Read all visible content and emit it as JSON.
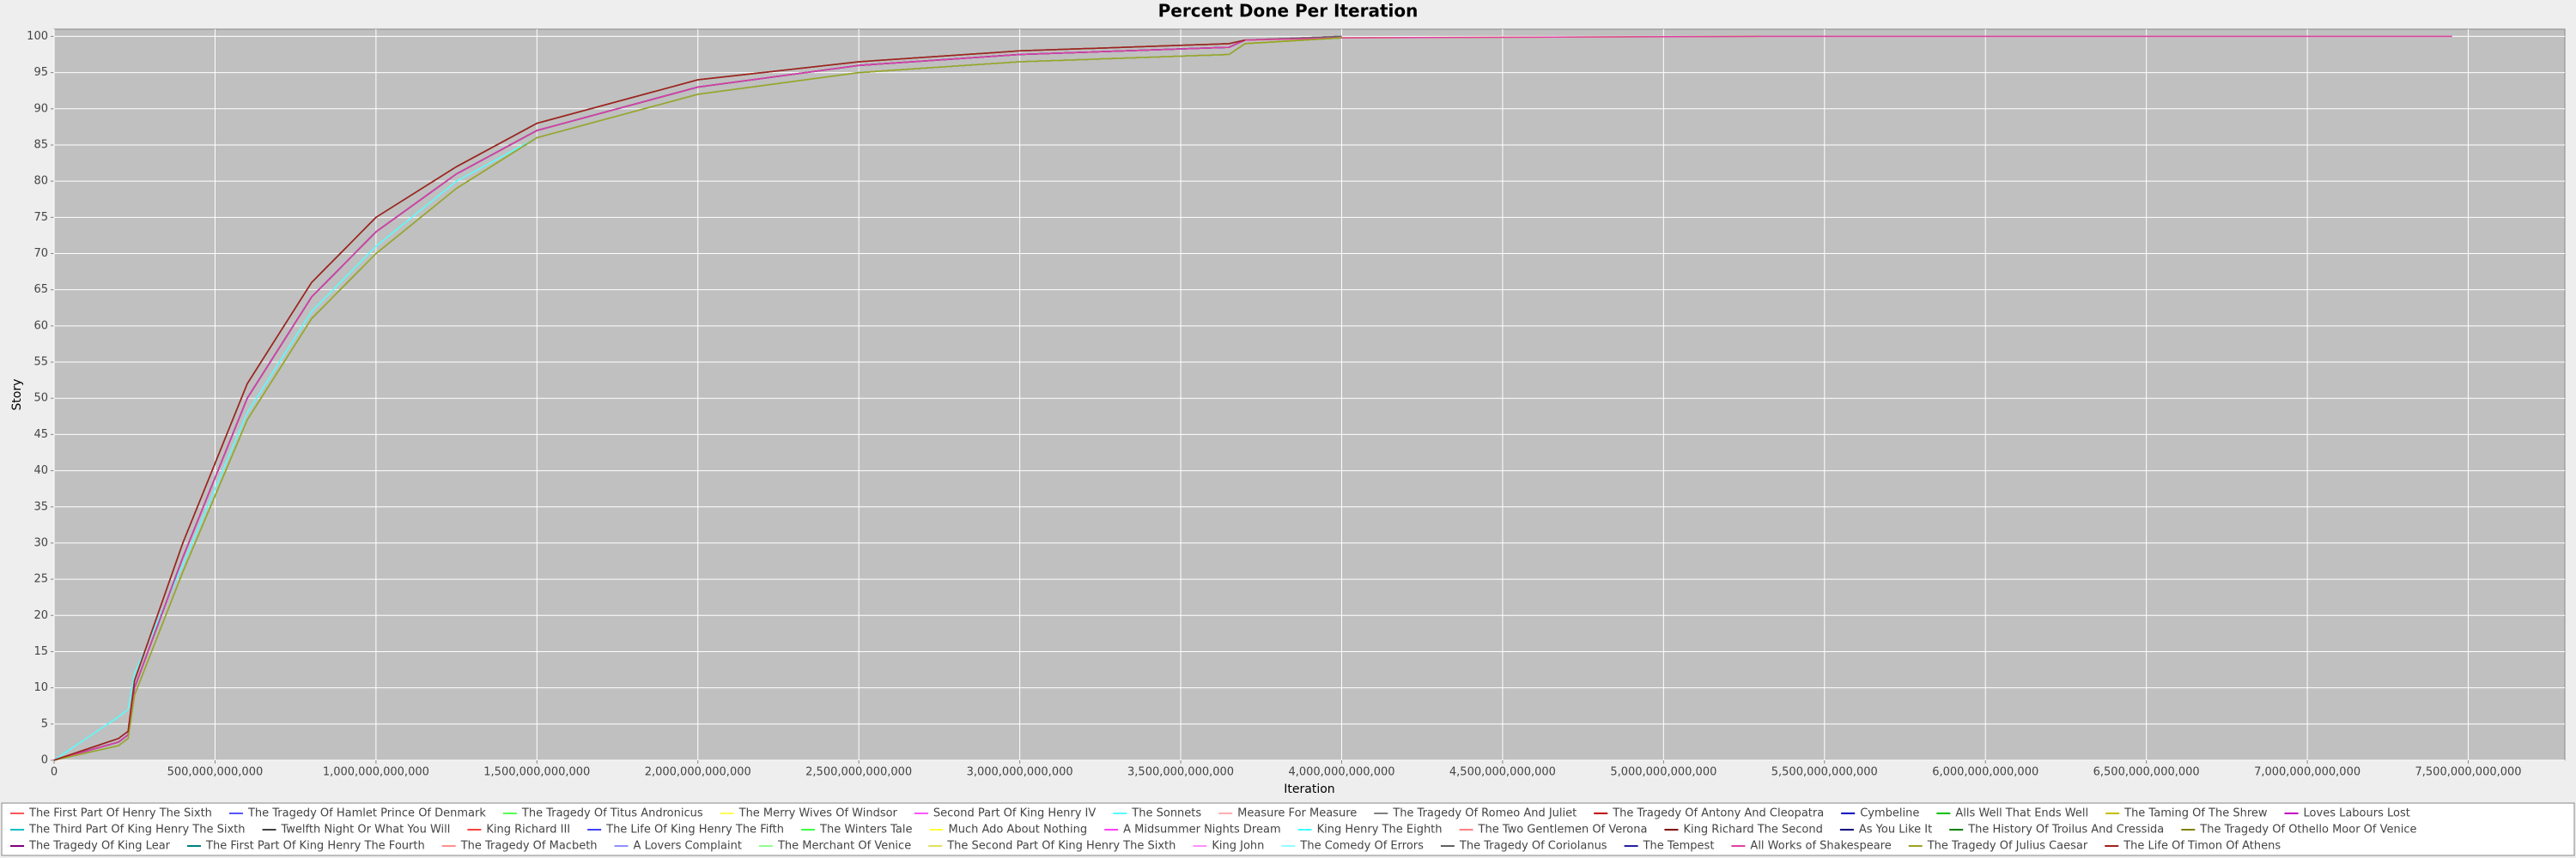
{
  "chart_data": {
    "type": "line",
    "title": "Percent Done Per Iteration",
    "x_label": "Iteration",
    "y_label": "Story",
    "x": [
      0,
      200000000000,
      230000000000,
      250000000000,
      400000000000,
      600000000000,
      800000000000,
      1000000000000,
      1250000000000,
      1500000000000,
      2000000000000,
      2500000000000,
      3000000000000,
      3650000000000,
      3700000000000,
      4000000000000,
      5300000000000,
      7450000000000
    ],
    "xlim": [
      0,
      7800000000000
    ],
    "ylim": [
      0,
      101
    ],
    "grid": true,
    "legend": "bottom",
    "xticks": [
      {
        "value": 0,
        "label": "0"
      },
      {
        "value": 500000000000,
        "label": "500,000,000,000"
      },
      {
        "value": 1000000000000,
        "label": "1,000,000,000,000"
      },
      {
        "value": 1500000000000,
        "label": "1,500,000,000,000"
      },
      {
        "value": 2000000000000,
        "label": "2,000,000,000,000"
      },
      {
        "value": 2500000000000,
        "label": "2,500,000,000,000"
      },
      {
        "value": 3000000000000,
        "label": "3,000,000,000,000"
      },
      {
        "value": 3500000000000,
        "label": "3,500,000,000,000"
      },
      {
        "value": 4000000000000,
        "label": "4,000,000,000,000"
      },
      {
        "value": 4500000000000,
        "label": "4,500,000,000,000"
      },
      {
        "value": 5000000000000,
        "label": "5,000,000,000,000"
      },
      {
        "value": 5500000000000,
        "label": "5,500,000,000,000"
      },
      {
        "value": 6000000000000,
        "label": "6,000,000,000,000"
      },
      {
        "value": 6500000000000,
        "label": "6,500,000,000,000"
      },
      {
        "value": 7000000000000,
        "label": "7,000,000,000,000"
      },
      {
        "value": 7500000000000,
        "label": "7,500,000,000,000"
      }
    ],
    "yticks": [
      0,
      5,
      10,
      15,
      20,
      25,
      30,
      35,
      40,
      45,
      50,
      55,
      60,
      65,
      70,
      75,
      80,
      85,
      90,
      95,
      100
    ],
    "series": [
      {
        "name": "The First Part Of Henry The Sixth",
        "color": "#ff5555",
        "values": [
          0,
          3,
          4,
          11,
          30,
          52,
          66,
          75,
          82,
          88,
          94,
          96.5,
          98,
          99,
          99.5,
          100,
          null,
          null
        ]
      },
      {
        "name": "The Tragedy Of Hamlet Prince Of Denmark",
        "color": "#5555ff",
        "values": [
          0,
          2.5,
          3.5,
          10,
          28,
          50,
          64,
          73,
          81,
          87,
          93,
          96,
          97.5,
          98.5,
          99.5,
          null,
          null,
          null
        ]
      },
      {
        "name": "The Tragedy Of Titus Andronicus",
        "color": "#55ff55",
        "values": [
          0,
          2,
          3,
          9,
          26,
          47,
          61,
          70,
          79,
          86,
          92,
          95,
          96.5,
          97.5,
          99,
          99.8,
          null,
          null
        ]
      },
      {
        "name": "The Merry Wives Of Windsor",
        "color": "#ffff55",
        "values": [
          0,
          3,
          4,
          11,
          30,
          52,
          66,
          75,
          82,
          88,
          94,
          96.5,
          98,
          99,
          99.5,
          null,
          null,
          null
        ]
      },
      {
        "name": "Second Part Of King Henry IV",
        "color": "#ff55ff",
        "values": [
          0,
          2.5,
          3.5,
          10,
          28,
          50,
          64,
          73,
          81,
          87,
          93,
          96,
          97.5,
          98.5,
          99.5,
          100,
          null,
          null
        ]
      },
      {
        "name": "The Sonnets",
        "color": "#55ffff",
        "values": [
          0,
          6,
          7,
          12,
          27,
          48,
          62,
          71,
          80,
          86,
          92,
          95,
          96.5,
          97.5,
          99,
          null,
          null,
          null
        ]
      },
      {
        "name": "Measure For Measure",
        "color": "#ffafaf",
        "values": [
          0,
          2,
          3,
          9,
          26,
          47,
          61,
          70,
          79,
          86,
          92,
          95,
          96.5,
          97.5,
          99,
          99.8,
          null,
          null
        ]
      },
      {
        "name": "The Tragedy Of Romeo And Juliet",
        "color": "#808080",
        "values": [
          0,
          3,
          4,
          11,
          30,
          52,
          66,
          75,
          82,
          88,
          94,
          96.5,
          98,
          99,
          99.5,
          100,
          null,
          null
        ]
      },
      {
        "name": "The Tragedy Of Antony And Cleopatra",
        "color": "#c00000",
        "values": [
          0,
          2.5,
          3.5,
          10,
          28,
          50,
          64,
          73,
          81,
          87,
          93,
          96,
          97.5,
          98.5,
          99.5,
          null,
          null,
          null
        ]
      },
      {
        "name": "Cymbeline",
        "color": "#0000c0",
        "values": [
          0,
          2,
          3,
          9,
          26,
          47,
          61,
          70,
          79,
          86,
          92,
          95,
          96.5,
          97.5,
          99,
          99.8,
          null,
          null
        ]
      },
      {
        "name": "Alls Well That Ends Well",
        "color": "#00c000",
        "values": [
          0,
          3,
          4,
          11,
          30,
          52,
          66,
          75,
          82,
          88,
          94,
          96.5,
          98,
          99,
          99.5,
          100,
          null,
          null
        ]
      },
      {
        "name": "The Taming Of The Shrew",
        "color": "#c0c000",
        "values": [
          0,
          2.5,
          3.5,
          10,
          28,
          50,
          64,
          73,
          81,
          87,
          93,
          96,
          97.5,
          98.5,
          99.5,
          99.8,
          100,
          null
        ]
      },
      {
        "name": "Loves Labours Lost",
        "color": "#c000c0",
        "values": [
          0,
          2,
          3,
          9,
          26,
          47,
          61,
          70,
          79,
          86,
          92,
          95,
          96.5,
          97.5,
          99,
          null,
          null,
          null
        ]
      },
      {
        "name": "The Third Part Of King Henry The Sixth",
        "color": "#00c0c0",
        "values": [
          0,
          3,
          4,
          11,
          30,
          52,
          66,
          75,
          82,
          88,
          94,
          96.5,
          98,
          99,
          99.5,
          100,
          null,
          null
        ]
      },
      {
        "name": "Twelfth Night Or What You Will",
        "color": "#404040",
        "values": [
          0,
          2.5,
          3.5,
          10,
          28,
          50,
          64,
          73,
          81,
          87,
          93,
          96,
          97.5,
          98.5,
          99.5,
          100,
          null,
          null
        ]
      },
      {
        "name": "King Richard III",
        "color": "#ff4040",
        "values": [
          0,
          2,
          3,
          9,
          26,
          47,
          61,
          70,
          79,
          86,
          92,
          95,
          96.5,
          97.5,
          99,
          null,
          null,
          null
        ]
      },
      {
        "name": "The Life Of King Henry The Fifth",
        "color": "#4040ff",
        "values": [
          0,
          3,
          4,
          11,
          30,
          52,
          66,
          75,
          82,
          88,
          94,
          96.5,
          98,
          99,
          99.5,
          100,
          null,
          null
        ]
      },
      {
        "name": "The Winters Tale",
        "color": "#40ff40",
        "values": [
          0,
          2.5,
          3.5,
          10,
          28,
          50,
          64,
          73,
          81,
          87,
          93,
          96,
          97.5,
          98.5,
          99.5,
          null,
          null,
          null
        ]
      },
      {
        "name": "Much Ado About Nothing",
        "color": "#ffff40",
        "values": [
          0,
          2,
          3,
          9,
          26,
          47,
          61,
          70,
          79,
          86,
          92,
          95,
          96.5,
          97.5,
          99,
          99.8,
          null,
          null
        ]
      },
      {
        "name": "A Midsummer Nights Dream",
        "color": "#ff40ff",
        "values": [
          0,
          3,
          4,
          11,
          30,
          52,
          66,
          75,
          82,
          88,
          94,
          96.5,
          98,
          99,
          99.5,
          100,
          null,
          null
        ]
      },
      {
        "name": "King Henry The Eighth",
        "color": "#40ffff",
        "values": [
          0,
          2.5,
          3.5,
          10,
          28,
          50,
          64,
          73,
          81,
          87,
          93,
          96,
          97.5,
          98.5,
          99.5,
          100,
          null,
          null
        ]
      },
      {
        "name": "The Two Gentlemen Of Verona",
        "color": "#ff8080",
        "values": [
          0,
          2,
          3,
          9,
          26,
          47,
          61,
          70,
          79,
          86,
          92,
          95,
          96.5,
          97.5,
          99,
          null,
          null,
          null
        ]
      },
      {
        "name": "King Richard The Second",
        "color": "#800000",
        "values": [
          0,
          3,
          4,
          11,
          30,
          52,
          66,
          75,
          82,
          88,
          94,
          96.5,
          98,
          99,
          99.5,
          100,
          null,
          null
        ]
      },
      {
        "name": "As You Like It",
        "color": "#000080",
        "values": [
          0,
          2.5,
          3.5,
          10,
          28,
          50,
          64,
          73,
          81,
          87,
          93,
          96,
          97.5,
          98.5,
          99.5,
          null,
          null,
          null
        ]
      },
      {
        "name": "The History Of Troilus And Cressida",
        "color": "#008000",
        "values": [
          0,
          2,
          3,
          9,
          26,
          47,
          61,
          70,
          79,
          86,
          92,
          95,
          96.5,
          97.5,
          99,
          99.8,
          null,
          null
        ]
      },
      {
        "name": "The Tragedy Of Othello Moor Of Venice",
        "color": "#808000",
        "values": [
          0,
          3,
          4,
          11,
          30,
          52,
          66,
          75,
          82,
          88,
          94,
          96.5,
          98,
          99,
          99.5,
          100,
          null,
          null
        ]
      },
      {
        "name": "The Tragedy Of King Lear",
        "color": "#800080",
        "values": [
          0,
          2.5,
          3.5,
          10,
          28,
          50,
          64,
          73,
          81,
          87,
          93,
          96,
          97.5,
          98.5,
          99.5,
          100,
          null,
          null
        ]
      },
      {
        "name": "The First Part Of King Henry The Fourth",
        "color": "#008080",
        "values": [
          0,
          2,
          3,
          9,
          26,
          47,
          61,
          70,
          79,
          86,
          92,
          95,
          96.5,
          97.5,
          99,
          null,
          null,
          null
        ]
      },
      {
        "name": "The Tragedy Of Macbeth",
        "color": "#ff9090",
        "values": [
          0,
          3,
          4,
          11,
          30,
          52,
          66,
          75,
          82,
          88,
          94,
          96.5,
          98,
          99,
          99.5,
          100,
          null,
          null
        ]
      },
      {
        "name": "A Lovers Complaint",
        "color": "#9090ff",
        "values": [
          0,
          2.5,
          3.5,
          10,
          28,
          50,
          64,
          73,
          81,
          87,
          93,
          96,
          97.5,
          98.5,
          99.5,
          null,
          null,
          null
        ]
      },
      {
        "name": "The Merchant Of Venice",
        "color": "#90ff90",
        "values": [
          0,
          2,
          3,
          9,
          26,
          47,
          61,
          70,
          79,
          86,
          92,
          95,
          96.5,
          97.5,
          99,
          99.8,
          null,
          null
        ]
      },
      {
        "name": "The Second Part Of King Henry The Sixth",
        "color": "#e0e060",
        "values": [
          0,
          3,
          4,
          11,
          30,
          52,
          66,
          75,
          82,
          88,
          94,
          96.5,
          98,
          99,
          99.5,
          100,
          null,
          null
        ]
      },
      {
        "name": "King John",
        "color": "#ff90ff",
        "values": [
          0,
          2.5,
          3.5,
          10,
          28,
          50,
          64,
          73,
          81,
          87,
          93,
          96,
          97.5,
          98.5,
          99.5,
          100,
          null,
          null
        ]
      },
      {
        "name": "The Comedy Of Errors",
        "color": "#90ffff",
        "values": [
          0,
          2,
          3,
          9,
          26,
          47,
          61,
          70,
          79,
          86,
          92,
          95,
          96.5,
          97.5,
          99,
          null,
          null,
          null
        ]
      },
      {
        "name": "The Tragedy Of Coriolanus",
        "color": "#606060",
        "values": [
          0,
          3,
          4,
          11,
          30,
          52,
          66,
          75,
          82,
          88,
          94,
          96.5,
          98,
          99,
          99.5,
          100,
          null,
          null
        ]
      },
      {
        "name": "The Tempest",
        "color": "#2020a0",
        "values": [
          0,
          2.5,
          3.5,
          10,
          28,
          50,
          64,
          73,
          81,
          87,
          93,
          96,
          97.5,
          98.5,
          99.5,
          null,
          null,
          null
        ]
      },
      {
        "name": "All Works of Shakespeare",
        "color": "#e040a0",
        "values": [
          0,
          2.5,
          3.5,
          10,
          28,
          50,
          64,
          73,
          81,
          87,
          93,
          96,
          97.5,
          98.5,
          99.5,
          99.8,
          100,
          100
        ]
      },
      {
        "name": "The Tragedy Of Julius Caesar",
        "color": "#a0a020",
        "values": [
          0,
          2,
          3,
          9,
          26,
          47,
          61,
          70,
          79,
          86,
          92,
          95,
          96.5,
          97.5,
          99,
          99.8,
          null,
          null
        ]
      },
      {
        "name": "The Life Of Timon Of Athens",
        "color": "#a02020",
        "values": [
          0,
          3,
          4,
          11,
          30,
          52,
          66,
          75,
          82,
          88,
          94,
          96.5,
          98,
          99,
          99.5,
          null,
          null,
          null
        ]
      }
    ]
  }
}
